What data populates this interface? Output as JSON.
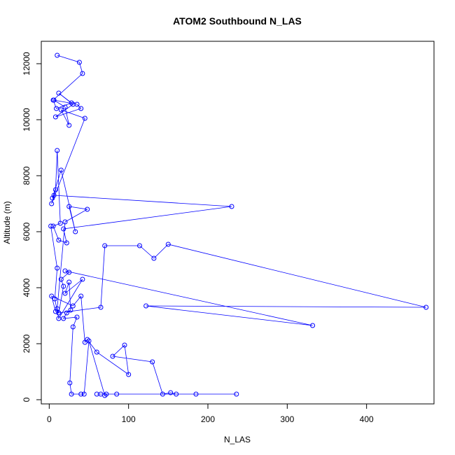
{
  "chart_data": {
    "type": "scatter",
    "title": "ATOM2 Southbound N_LAS",
    "xlabel": "N_LAS",
    "ylabel": "Altitude (m)",
    "xlim": [
      -10,
      485
    ],
    "ylim": [
      -150,
      12800
    ],
    "xticks": [
      0,
      100,
      200,
      300,
      400
    ],
    "yticks": [
      0,
      2000,
      4000,
      6000,
      8000,
      10000,
      12000
    ],
    "grid": false,
    "series_color": "#0000ff",
    "x": [
      10,
      38,
      42,
      5,
      9,
      28,
      12,
      30,
      8,
      40,
      35,
      6,
      20,
      25,
      15,
      45,
      3,
      8,
      10,
      14,
      5,
      12,
      22,
      18,
      230,
      6,
      4,
      15,
      33,
      25,
      48,
      20,
      10,
      12,
      65,
      70,
      114,
      132,
      150,
      475,
      122,
      332,
      20,
      25,
      15,
      18,
      12,
      8,
      3,
      30,
      40,
      45,
      48,
      60,
      100,
      95,
      80,
      130,
      143,
      153,
      160,
      185,
      236,
      65,
      85,
      60,
      72,
      70,
      50,
      44,
      40,
      28,
      26,
      30,
      35,
      18,
      22,
      27,
      25,
      20,
      42,
      12,
      7,
      10,
      2
    ],
    "y": [
      12300,
      12050,
      11650,
      10700,
      10400,
      10600,
      10950,
      10550,
      10100,
      10400,
      10550,
      10700,
      10450,
      9800,
      10350,
      10050,
      7000,
      7500,
      8900,
      6300,
      6200,
      5700,
      5600,
      6100,
      6900,
      7300,
      7200,
      8200,
      6000,
      6900,
      6800,
      6350,
      3250,
      3100,
      3300,
      5500,
      5500,
      5050,
      5550,
      3300,
      3350,
      2650,
      4600,
      4550,
      4300,
      4050,
      3100,
      3150,
      3700,
      3350,
      3700,
      2050,
      2150,
      1700,
      900,
      1950,
      1550,
      1350,
      200,
      250,
      200,
      200,
      200,
      200,
      200,
      200,
      200,
      150,
      2100,
      200,
      200,
      200,
      600,
      2600,
      2950,
      2900,
      3100,
      3200,
      4200,
      3800,
      4300,
      2900,
      3600,
      4700,
      6200
    ]
  }
}
